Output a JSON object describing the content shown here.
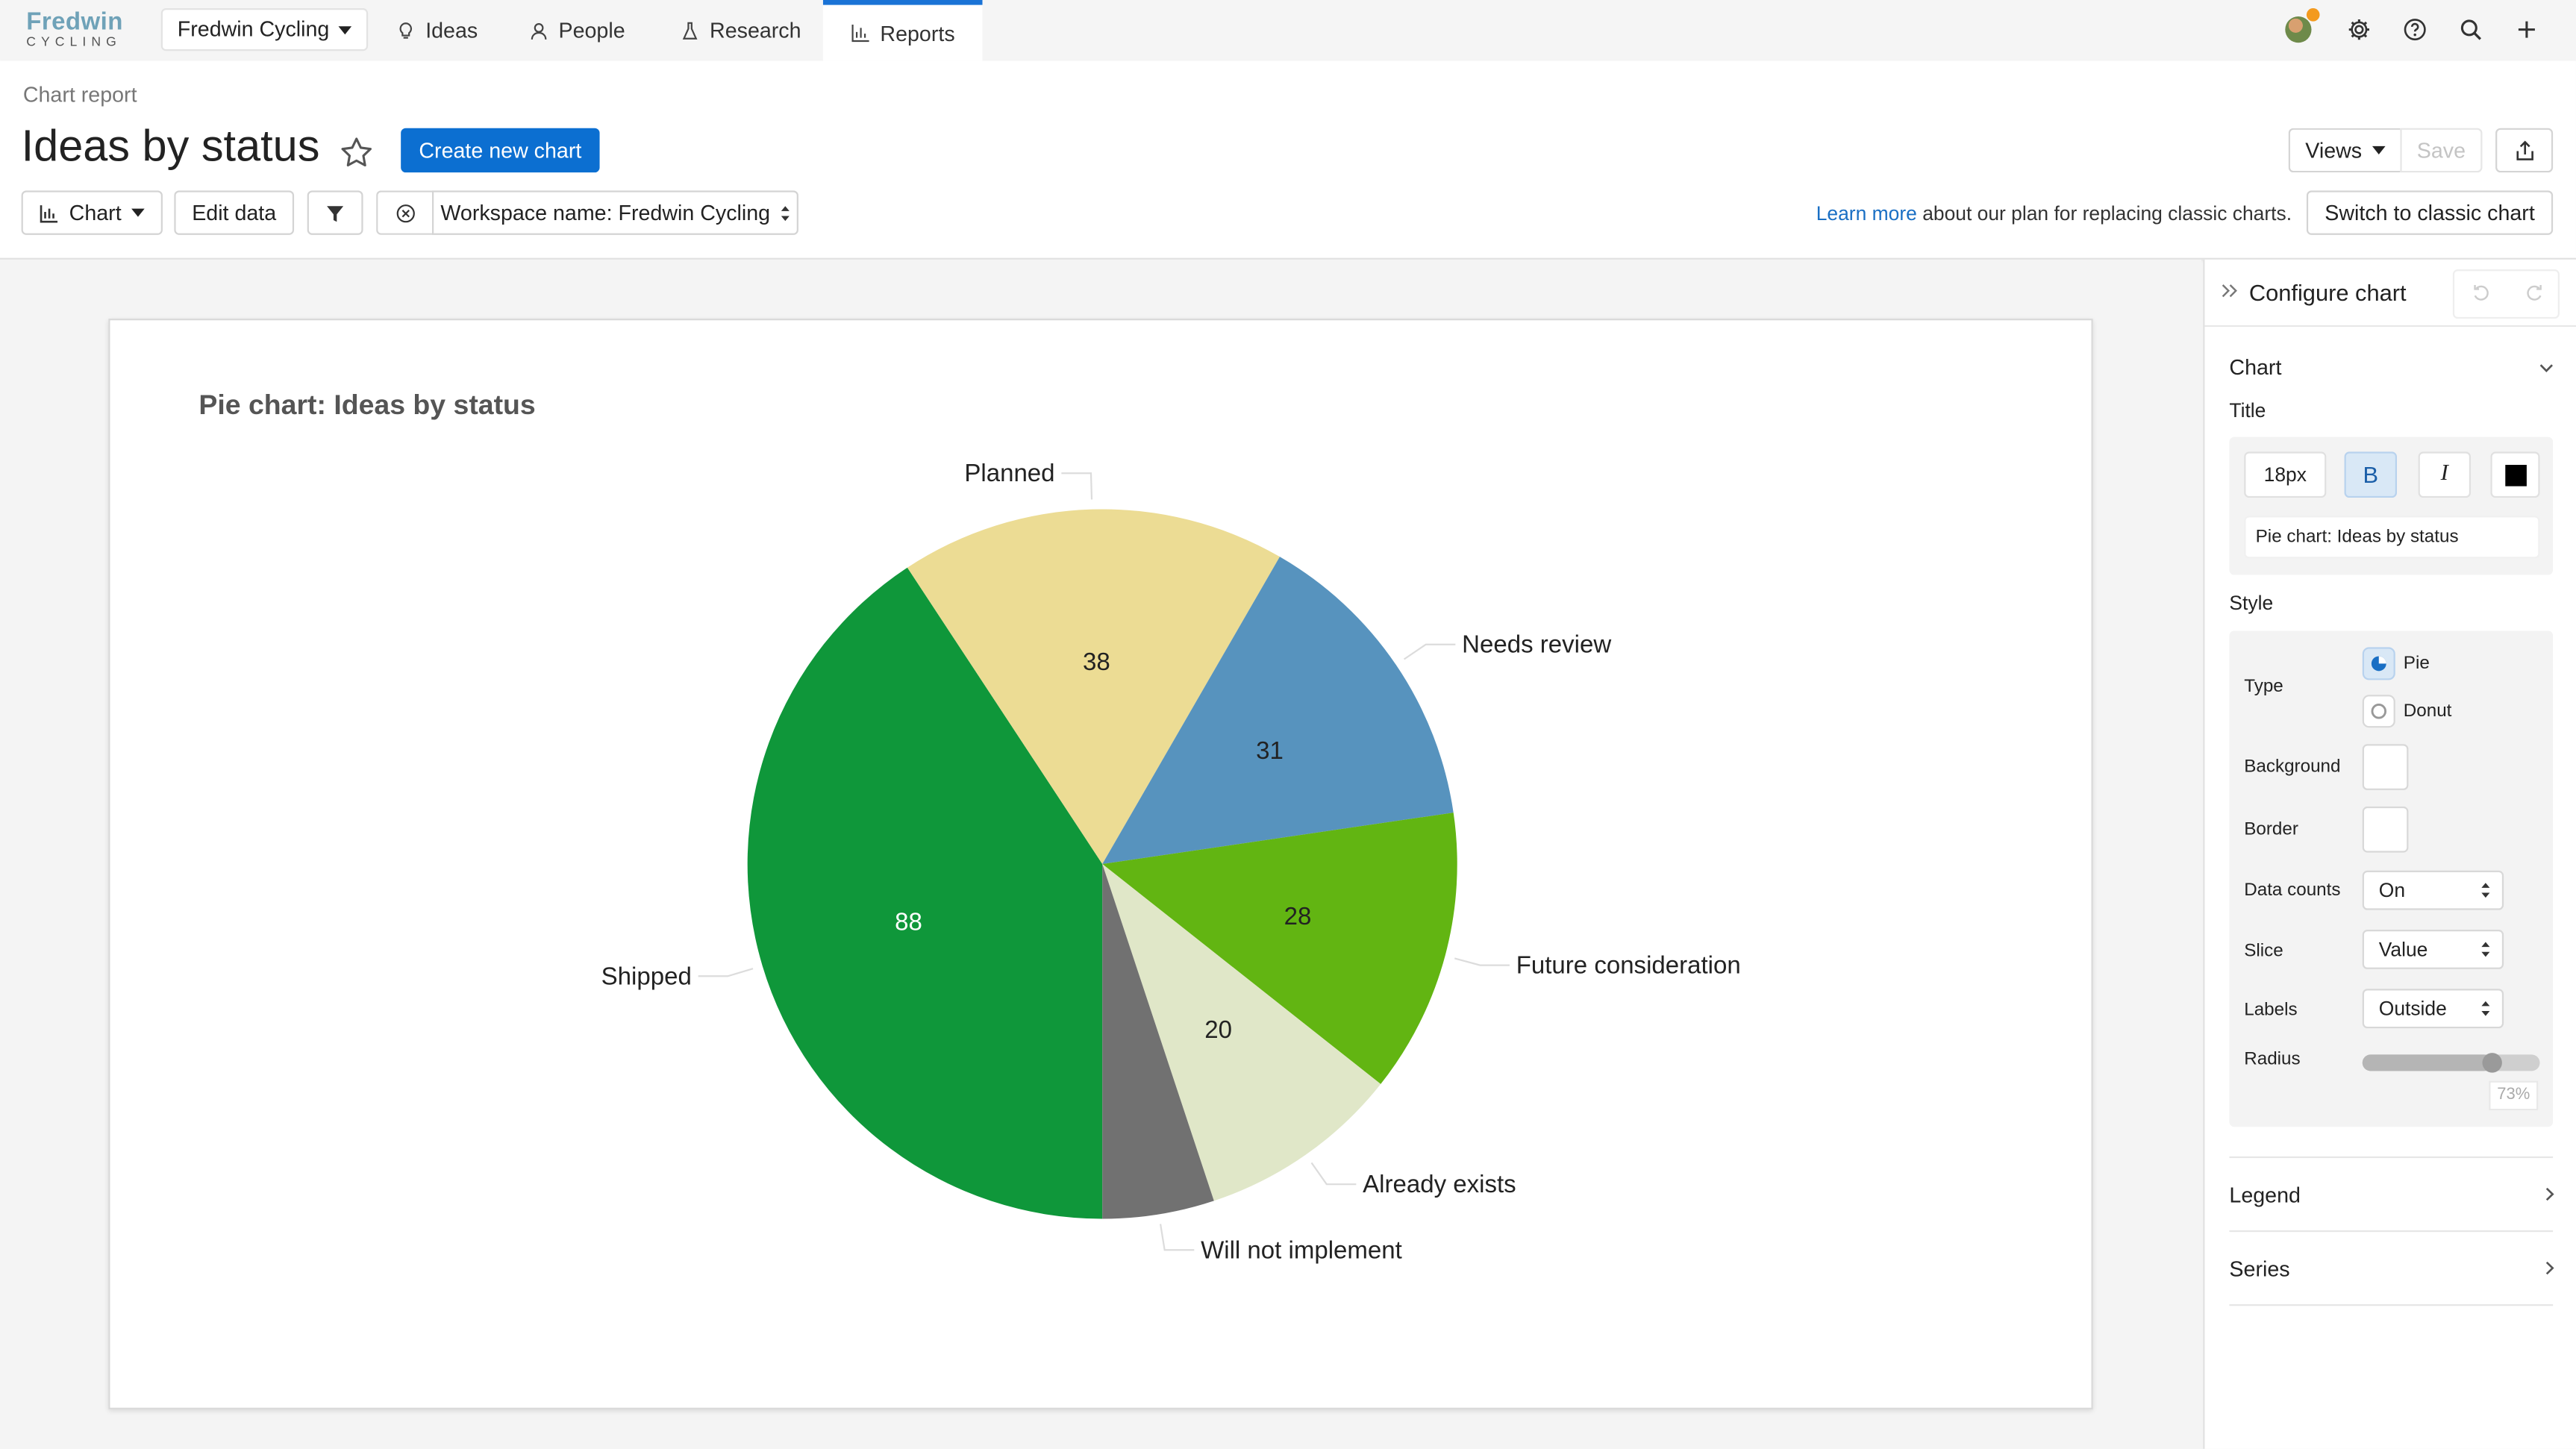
{
  "nav": {
    "logo_top": "Fredwin",
    "logo_bottom": "CYCLING",
    "workspace": "Fredwin Cycling",
    "tabs": [
      {
        "label": "Ideas",
        "icon": "lightbulb-icon"
      },
      {
        "label": "People",
        "icon": "person-icon"
      },
      {
        "label": "Research",
        "icon": "flask-icon"
      },
      {
        "label": "Reports",
        "icon": "bar-chart-icon",
        "active": true
      }
    ],
    "right_icons": [
      "avatar",
      "gear-icon",
      "help-icon",
      "search-icon",
      "plus-icon"
    ]
  },
  "header": {
    "breadcrumb": "Chart report",
    "title": "Ideas by status",
    "create_button": "Create new chart",
    "views_button": "Views",
    "save_button": "Save",
    "chart_button": "Chart",
    "edit_data_button": "Edit data",
    "workspace_filter": "Workspace name: Fredwin Cycling",
    "learn_more_link": "Learn more",
    "learn_more_text": "about our plan for replacing classic charts.",
    "switch_button": "Switch to classic chart"
  },
  "chart_data": {
    "type": "pie",
    "title": "Pie chart: Ideas by status",
    "labels": [
      "Shipped",
      "Planned",
      "Needs review",
      "Future consideration",
      "Already exists",
      "Will not implement"
    ],
    "values": [
      88,
      38,
      31,
      28,
      20,
      11
    ],
    "colors": [
      "#0f973a",
      "#ecdc94",
      "#5793be",
      "#62b512",
      "#e0e7c8",
      "#717171"
    ],
    "data_counts": [
      88,
      38,
      31,
      28,
      20,
      null
    ],
    "labels_position": "outside",
    "start_angle_deg": 90,
    "direction": "clockwise"
  },
  "panel": {
    "title": "Configure chart",
    "chart_section": "Chart",
    "title_label": "Title",
    "font_size": "18px",
    "bold_label": "B",
    "italic_label": "I",
    "title_color": "#000000",
    "title_text": "Pie chart: Ideas by status",
    "style_label": "Style",
    "type_label": "Type",
    "type_pie": "Pie",
    "type_donut": "Donut",
    "background_label": "Background",
    "border_label": "Border",
    "data_counts_label": "Data counts",
    "data_counts_value": "On",
    "slice_label": "Slice",
    "slice_value": "Value",
    "labels_label": "Labels",
    "labels_value": "Outside",
    "radius_label": "Radius",
    "radius_value": "73%",
    "radius_fraction": 0.73,
    "legend_section": "Legend",
    "series_section": "Series"
  }
}
